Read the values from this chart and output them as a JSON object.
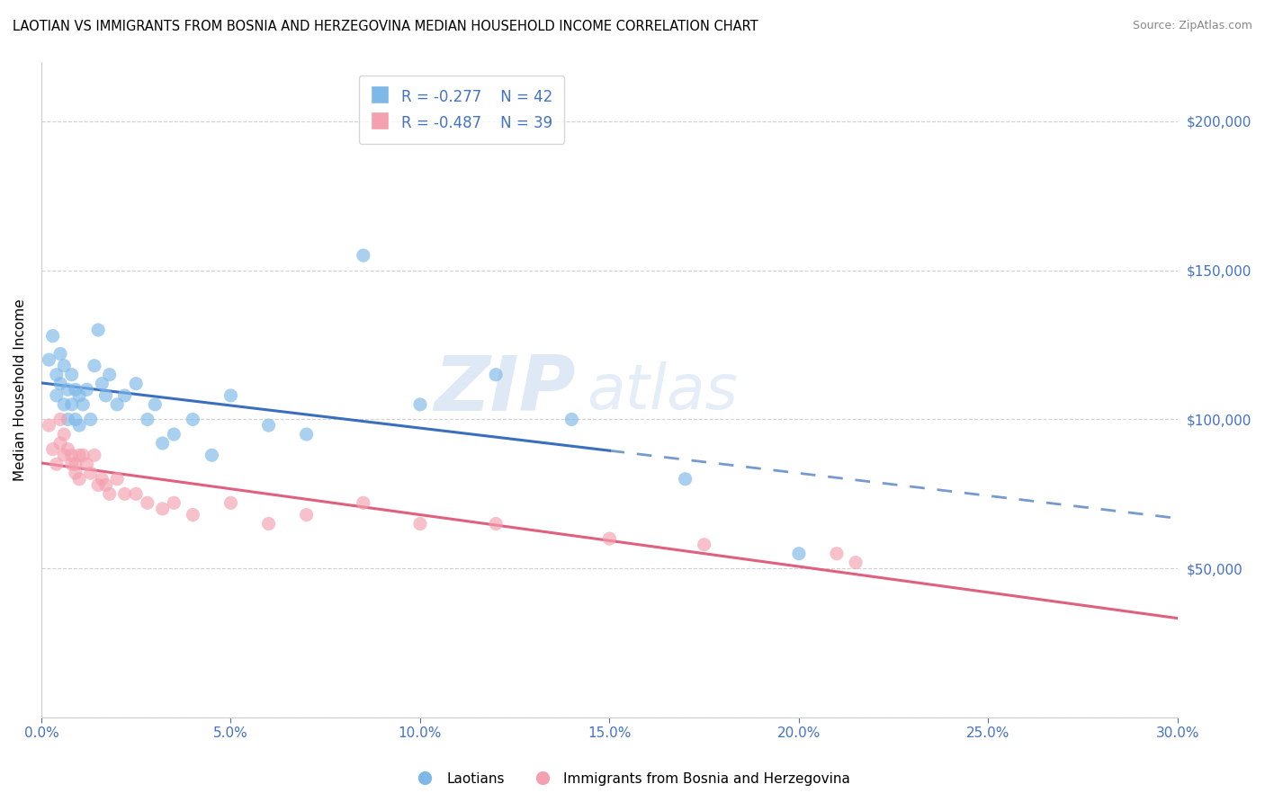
{
  "title": "LAOTIAN VS IMMIGRANTS FROM BOSNIA AND HERZEGOVINA MEDIAN HOUSEHOLD INCOME CORRELATION CHART",
  "source": "Source: ZipAtlas.com",
  "ylabel": "Median Household Income",
  "xlim": [
    0,
    0.3
  ],
  "ylim": [
    0,
    220000
  ],
  "yticks": [
    0,
    50000,
    100000,
    150000,
    200000
  ],
  "ytick_labels": [
    "",
    "$50,000",
    "$100,000",
    "$150,000",
    "$200,000"
  ],
  "xtick_labels": [
    "0.0%",
    "5.0%",
    "10.0%",
    "15.0%",
    "20.0%",
    "25.0%",
    "30.0%"
  ],
  "xtick_positions": [
    0.0,
    0.05,
    0.1,
    0.15,
    0.2,
    0.25,
    0.3
  ],
  "legend_R1": "R = -0.277",
  "legend_N1": "N = 42",
  "legend_R2": "R = -0.487",
  "legend_N2": "N = 39",
  "color_blue": "#7db8e8",
  "color_pink": "#f4a0b0",
  "color_line_blue": "#3a6fbd",
  "color_line_pink": "#e06080",
  "color_text_axis": "#4472C4",
  "color_grid": "#d0d0d0",
  "watermark_zip": "ZIP",
  "watermark_atlas": "atlas",
  "laotians_x": [
    0.002,
    0.003,
    0.004,
    0.004,
    0.005,
    0.005,
    0.006,
    0.006,
    0.007,
    0.007,
    0.008,
    0.008,
    0.009,
    0.009,
    0.01,
    0.01,
    0.011,
    0.012,
    0.013,
    0.014,
    0.015,
    0.016,
    0.017,
    0.018,
    0.02,
    0.022,
    0.025,
    0.028,
    0.03,
    0.032,
    0.035,
    0.04,
    0.045,
    0.05,
    0.06,
    0.07,
    0.085,
    0.1,
    0.12,
    0.14,
    0.17,
    0.2
  ],
  "laotians_y": [
    120000,
    128000,
    115000,
    108000,
    122000,
    112000,
    118000,
    105000,
    110000,
    100000,
    115000,
    105000,
    110000,
    100000,
    108000,
    98000,
    105000,
    110000,
    100000,
    118000,
    130000,
    112000,
    108000,
    115000,
    105000,
    108000,
    112000,
    100000,
    105000,
    92000,
    95000,
    100000,
    88000,
    108000,
    98000,
    95000,
    155000,
    105000,
    115000,
    100000,
    80000,
    55000
  ],
  "bosnia_x": [
    0.002,
    0.003,
    0.004,
    0.005,
    0.005,
    0.006,
    0.006,
    0.007,
    0.008,
    0.008,
    0.009,
    0.009,
    0.01,
    0.01,
    0.011,
    0.012,
    0.013,
    0.014,
    0.015,
    0.016,
    0.017,
    0.018,
    0.02,
    0.022,
    0.025,
    0.028,
    0.032,
    0.035,
    0.04,
    0.05,
    0.06,
    0.07,
    0.085,
    0.1,
    0.12,
    0.15,
    0.175,
    0.21,
    0.215
  ],
  "bosnia_y": [
    98000,
    90000,
    85000,
    100000,
    92000,
    95000,
    88000,
    90000,
    85000,
    88000,
    85000,
    82000,
    88000,
    80000,
    88000,
    85000,
    82000,
    88000,
    78000,
    80000,
    78000,
    75000,
    80000,
    75000,
    75000,
    72000,
    70000,
    72000,
    68000,
    72000,
    65000,
    68000,
    72000,
    65000,
    65000,
    60000,
    58000,
    55000,
    52000
  ],
  "blue_line_solid_end": 0.15,
  "blue_line_dash_end": 0.3,
  "pink_line_end": 0.3
}
